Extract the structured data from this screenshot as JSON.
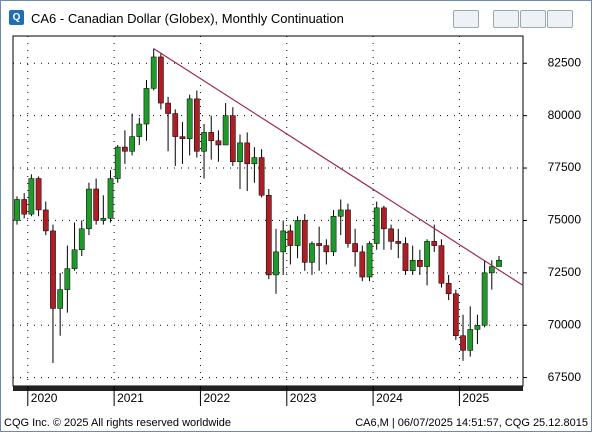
{
  "chart_data": {
    "type": "candlestick",
    "title": "CA6 - Canadian Dollar (Globex), Monthly Continuation",
    "categories": [
      null,
      null,
      "2020",
      null,
      null,
      null,
      null,
      null,
      null,
      null,
      null,
      null,
      null,
      null,
      "2021",
      null,
      null,
      null,
      null,
      null,
      null,
      null,
      null,
      null,
      null,
      null,
      "2022",
      null,
      null,
      null,
      null,
      null,
      null,
      null,
      null,
      null,
      null,
      null,
      "2023",
      null,
      null,
      null,
      null,
      null,
      null,
      null,
      null,
      null,
      null,
      null,
      "2024",
      null,
      null,
      null,
      null,
      null,
      null,
      null,
      null,
      null,
      null,
      null,
      "2025",
      null,
      null,
      null,
      null,
      null
    ],
    "open": [
      75000,
      76000,
      75300,
      77000,
      75500,
      74500,
      70800,
      71700,
      72700,
      73600,
      74600,
      76500,
      75000,
      75100,
      77000,
      78500,
      78300,
      79000,
      79600,
      81300,
      82800,
      80600,
      80100,
      79000,
      78900,
      80800,
      78300,
      79200,
      78800,
      78600,
      80000,
      77800,
      78700,
      77700,
      78000,
      76200,
      72400,
      73500,
      74500,
      73800,
      75000,
      73000,
      73900,
      73800,
      73500,
      75200,
      75500,
      73900,
      73500,
      72300,
      73900,
      75600,
      74600,
      74000,
      73900,
      72600,
      73100,
      72800,
      74000,
      73800,
      72000,
      71500,
      69500,
      68800,
      69800,
      70000,
      72500,
      72800
    ],
    "high": [
      76150,
      76300,
      77200,
      77100,
      75900,
      74800,
      72500,
      73800,
      74900,
      75000,
      76800,
      77000,
      76200,
      77400,
      78600,
      79300,
      80100,
      79900,
      81700,
      83200,
      83000,
      80900,
      80300,
      79700,
      81000,
      81200,
      79600,
      80000,
      79300,
      80600,
      80400,
      79100,
      79200,
      78500,
      78400,
      76500,
      74600,
      75000,
      74800,
      75200,
      75300,
      74000,
      74700,
      74100,
      75500,
      76000,
      75800,
      74600,
      73800,
      74000,
      75900,
      75700,
      74800,
      74600,
      74200,
      73800,
      73600,
      74100,
      74800,
      74100,
      72400,
      71700,
      70500,
      70900,
      70500,
      73100,
      73100,
      73300
    ],
    "low": [
      74800,
      75100,
      75200,
      75200,
      74300,
      68200,
      69500,
      70600,
      72600,
      73300,
      74300,
      74800,
      74800,
      74900,
      76800,
      77700,
      78100,
      78600,
      78800,
      81200,
      80300,
      78300,
      77600,
      77700,
      78100,
      78000,
      77000,
      77900,
      77800,
      78600,
      77600,
      76500,
      76400,
      76800,
      76100,
      72200,
      71500,
      72400,
      72900,
      73200,
      72600,
      72400,
      72600,
      72900,
      73300,
      74300,
      73700,
      72800,
      72100,
      72100,
      73600,
      73600,
      73600,
      73200,
      72400,
      72400,
      72400,
      71900,
      73500,
      71800,
      71200,
      69300,
      68300,
      68500,
      69100,
      69900,
      71700,
      72800
    ],
    "close": [
      76000,
      75300,
      77000,
      75500,
      74500,
      70800,
      71700,
      72700,
      73600,
      74600,
      76500,
      75000,
      75100,
      77000,
      78500,
      78300,
      79000,
      79600,
      81300,
      82800,
      80600,
      80100,
      79000,
      78900,
      80800,
      78300,
      79200,
      78800,
      78600,
      80000,
      77800,
      78700,
      77700,
      78000,
      76200,
      72400,
      73500,
      74500,
      73800,
      75000,
      73000,
      73900,
      73800,
      73500,
      75200,
      75500,
      73900,
      73500,
      72300,
      73900,
      75600,
      74600,
      74000,
      73900,
      72600,
      73100,
      72800,
      74000,
      73800,
      72000,
      71500,
      69500,
      68800,
      69800,
      70000,
      72500,
      72800,
      73100
    ],
    "up_color": "#1f9a2a",
    "down_color": "#ad1f24",
    "ylim": [
      67100,
      83800
    ],
    "yticks": [
      67500,
      70000,
      72500,
      75000,
      77500,
      80000,
      82500
    ],
    "grid": true,
    "trendline": {
      "color": "#9b2a4e",
      "values": [
        83200,
        71900
      ]
    },
    "footer_left": "CQG Inc. © 2025 All rights reserved worldwide",
    "footer_right": "CA6,M | 06/07/2025 14:51:57, CQG 25.12.8015"
  }
}
